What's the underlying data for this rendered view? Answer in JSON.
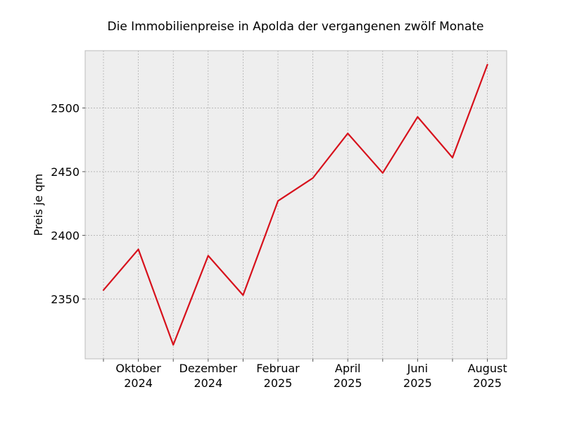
{
  "chart_data": {
    "type": "line",
    "title": "Die Immobilienpreise in Apolda der vergangenen zwölf Monate",
    "xlabel": "",
    "ylabel": "Preis je qm",
    "x": [
      "2024-09",
      "2024-10",
      "2024-11",
      "2024-12",
      "2025-01",
      "2025-02",
      "2025-03",
      "2025-04",
      "2025-05",
      "2025-06",
      "2025-07",
      "2025-08"
    ],
    "series": [
      {
        "values": [
          2357,
          2389,
          2314,
          2384,
          2353,
          2427,
          2445,
          2480,
          2449,
          2493,
          2461,
          2534
        ],
        "color": "#d7111c"
      }
    ],
    "x_ticks": [
      {
        "x": "2024-10",
        "line1": "Oktober",
        "line2": "2024"
      },
      {
        "x": "2024-12",
        "line1": "Dezember",
        "line2": "2024"
      },
      {
        "x": "2025-02",
        "line1": "Februar",
        "line2": "2025"
      },
      {
        "x": "2025-04",
        "line1": "April",
        "line2": "2025"
      },
      {
        "x": "2025-06",
        "line1": "Juni",
        "line2": "2025"
      },
      {
        "x": "2025-08",
        "line1": "August",
        "line2": "2025"
      }
    ],
    "y_ticks": [
      2350,
      2400,
      2450,
      2500
    ],
    "ylim": [
      2303,
      2545
    ],
    "grid": true,
    "background_color": "#eeeeee",
    "grid_color": "#b0b0b0"
  }
}
